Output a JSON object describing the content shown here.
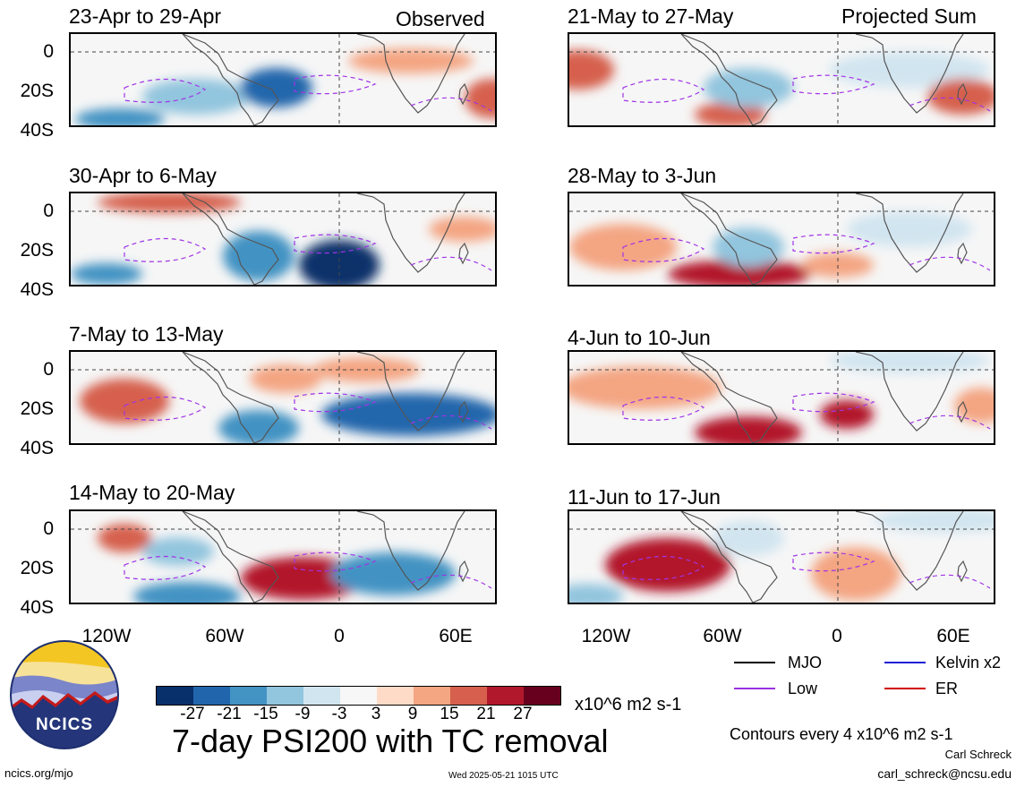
{
  "panels": {
    "left": [
      {
        "title": "23-Apr to 29-Apr"
      },
      {
        "title": "30-Apr to 6-May"
      },
      {
        "title": "7-May to 13-May"
      },
      {
        "title": "14-May to 20-May"
      }
    ],
    "right": [
      {
        "title": "21-May to 27-May"
      },
      {
        "title": "28-May to 3-Jun"
      },
      {
        "title": "4-Jun to 10-Jun"
      },
      {
        "title": "11-Jun to 17-Jun"
      }
    ]
  },
  "column_labels": {
    "left": "Observed",
    "right": "Projected Sum"
  },
  "lat_labels": [
    "0",
    "20S",
    "40S"
  ],
  "lon_labels": [
    "120W",
    "60W",
    "0",
    "60E"
  ],
  "legend": {
    "mjo": "MJO",
    "kelvin": "Kelvin x2",
    "low": "Low",
    "er": "ER",
    "colors": {
      "mjo": "#000000",
      "kelvin": "#1f1fd6",
      "low": "#9b30e0",
      "er": "#d00000"
    }
  },
  "colorbar": {
    "colors": [
      "#08306b",
      "#2166ac",
      "#4393c3",
      "#92c5de",
      "#d1e5f0",
      "#f7f7f7",
      "#fddbc7",
      "#f4a582",
      "#d6604d",
      "#b2182b",
      "#67001f"
    ],
    "ticks": [
      "-27",
      "-21",
      "-15",
      "-9",
      "-3",
      "3",
      "9",
      "15",
      "21",
      "27"
    ],
    "units": "x10^6 m2 s-1"
  },
  "main_title": "7-day PSI200 with TC removal",
  "contour_note": "Contours every 4 x10^6 m2 s-1",
  "author": "Carl Schreck",
  "email": "carl_schreck@ncsu.edu",
  "site": "ncics.org/mjo",
  "timestamp": "Wed 2025-05-21 1015 UTC",
  "logo_text": "NCICS"
}
